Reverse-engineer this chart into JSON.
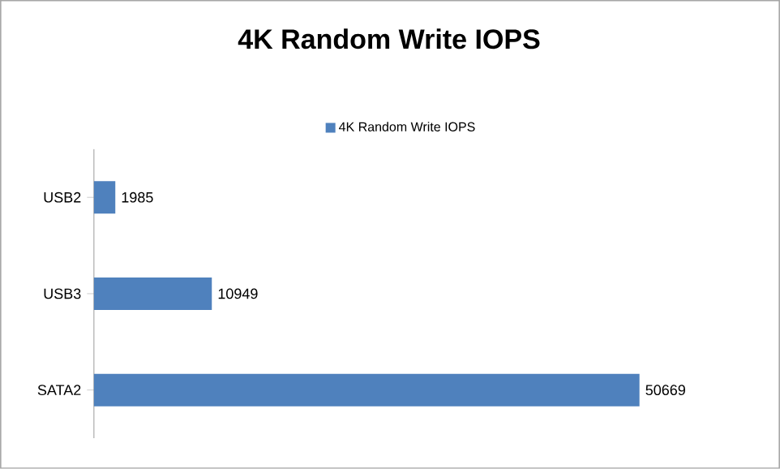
{
  "chart_data": {
    "type": "bar",
    "orientation": "horizontal",
    "title": "4K Random Write IOPS",
    "categories": [
      "USB2",
      "USB3",
      "SATA2"
    ],
    "series": [
      {
        "name": "4K Random Write IOPS",
        "color": "#4f81bd",
        "values": [
          1985,
          10949,
          50669
        ]
      }
    ],
    "data_labels": true,
    "legend": "top"
  }
}
